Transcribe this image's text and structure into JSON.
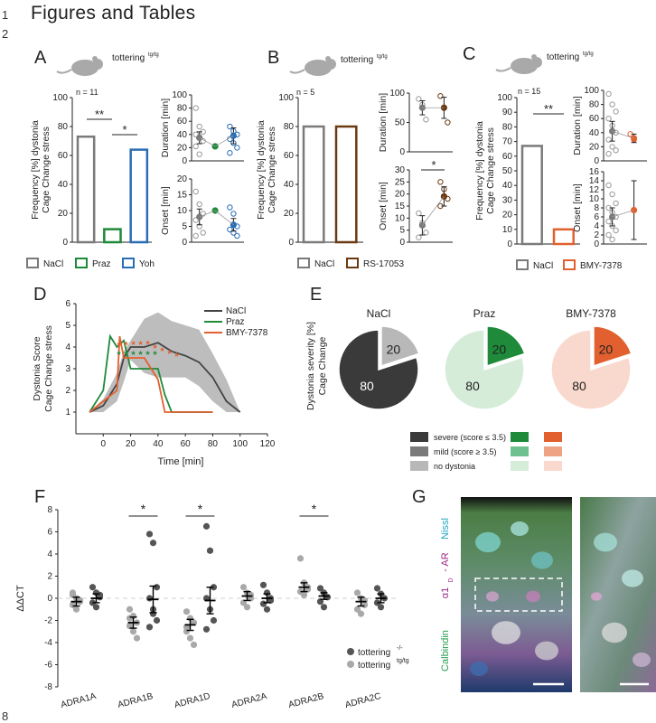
{
  "page": {
    "line_numbers": [
      "1",
      "2",
      "8"
    ],
    "heading": "Figures and Tables"
  },
  "panel_labels": {
    "A": "A",
    "B": "B",
    "C": "C",
    "D": "D",
    "E": "E",
    "F": "F",
    "G": "G"
  },
  "colors": {
    "nacl": "#7a7a7a",
    "praz": "#1e8a3a",
    "yoh": "#2a6db5",
    "rs": "#6b3a12",
    "bmy": "#e2602f",
    "gray_fill": "#bdbdbd",
    "severe_nacl": "#3a3a3a",
    "mild_nacl": "#7a7a7a",
    "no_nacl": "#b8b8b8",
    "severe_praz": "#1e8a3a",
    "mild_praz": "#6ec08e",
    "no_praz": "#d5ecd9",
    "severe_bmy": "#e2602f",
    "mild_bmy": "#efa385",
    "no_bmy": "#f9d9cd"
  },
  "chart_data": [
    {
      "id": "A-freq",
      "type": "bar",
      "title": "tottering",
      "title_sup": "tg/tg",
      "n": "n = 11",
      "ylabel": [
        "Frequency [%] dystonia",
        "Cage Change stress"
      ],
      "ylim": [
        0,
        100
      ],
      "yticks": [
        "0",
        "20",
        "40",
        "60",
        "80",
        "100"
      ],
      "categories": [
        "NaCl",
        "Praz",
        "Yoh"
      ],
      "values": [
        73,
        9,
        64
      ],
      "significance": [
        "**",
        "*"
      ],
      "legend": [
        "NaCl",
        "Praz",
        "Yoh"
      ]
    },
    {
      "id": "A-duration",
      "type": "scatter",
      "ylabel": "Duration [min]",
      "ylim": [
        0,
        100
      ],
      "yticks": [
        "0",
        "20",
        "40",
        "60",
        "80",
        "100"
      ],
      "groups": [
        {
          "name": "NaCl",
          "mean": 35,
          "err": 9
        },
        {
          "name": "Praz",
          "mean": 22
        },
        {
          "name": "Yoh",
          "mean": 38,
          "err": 12
        }
      ],
      "points": {
        "NaCl": [
          80,
          52,
          44,
          40,
          36,
          30,
          22,
          10
        ],
        "Yoh": [
          52,
          45,
          40,
          33,
          27,
          20,
          12
        ]
      }
    },
    {
      "id": "A-onset",
      "type": "scatter",
      "ylabel": "Onset [min]",
      "ylim": [
        0,
        20
      ],
      "yticks": [
        "0",
        "5",
        "10",
        "15",
        "20"
      ],
      "groups": [
        {
          "name": "NaCl",
          "mean": 8,
          "err": 2.5
        },
        {
          "name": "Praz",
          "mean": 10
        },
        {
          "name": "Yoh",
          "mean": 5.5,
          "err": 2
        }
      ],
      "points": {
        "NaCl": [
          16,
          12,
          9,
          7,
          5,
          3,
          2
        ],
        "Yoh": [
          11,
          9,
          5,
          4,
          3,
          2
        ]
      }
    },
    {
      "id": "B-freq",
      "type": "bar",
      "title": "tottering",
      "title_sup": "tg/tg",
      "n": "n = 5",
      "ylabel": [
        "Frequency [%] dystonia",
        "Cage Change stress"
      ],
      "ylim": [
        0,
        100
      ],
      "yticks": [
        "0",
        "20",
        "40",
        "60",
        "80",
        "100"
      ],
      "categories": [
        "NaCl",
        "RS-17053"
      ],
      "values": [
        80,
        80
      ],
      "legend": [
        "NaCl",
        "RS-17053"
      ]
    },
    {
      "id": "B-duration",
      "type": "scatter",
      "ylabel": "Duration [min]",
      "ylim": [
        0,
        100
      ],
      "yticks": [
        "0",
        "50",
        "100"
      ],
      "groups": [
        {
          "name": "NaCl",
          "mean": 75,
          "err": 12
        },
        {
          "name": "RS-17053",
          "mean": 75,
          "err": 18
        }
      ],
      "points": {
        "NaCl": [
          90,
          80,
          55
        ],
        "RS-17053": [
          95,
          75,
          50
        ]
      }
    },
    {
      "id": "B-onset",
      "type": "scatter",
      "ylabel": "Onset [min]",
      "ylim": [
        0,
        30
      ],
      "yticks": [
        "0",
        "5",
        "10",
        "15",
        "20",
        "25",
        "30"
      ],
      "significance": [
        "*"
      ],
      "groups": [
        {
          "name": "NaCl",
          "mean": 7,
          "err": 4
        },
        {
          "name": "RS-17053",
          "mean": 19,
          "err": 4
        }
      ],
      "points": {
        "NaCl": [
          12,
          8,
          4,
          2
        ],
        "RS-17053": [
          25,
          22,
          18,
          15
        ]
      }
    },
    {
      "id": "C-freq",
      "type": "bar",
      "title": "tottering",
      "title_sup": "tg/tg",
      "n": "n = 15",
      "ylabel": [
        "Frequency [%] dystonia",
        "Cage Change stress"
      ],
      "ylim": [
        0,
        100
      ],
      "yticks": [
        "0",
        "10",
        "20",
        "30",
        "40",
        "50",
        "60",
        "70",
        "80",
        "90",
        "100"
      ],
      "categories": [
        "NaCl",
        "BMY-7378"
      ],
      "values": [
        67,
        10
      ],
      "significance": [
        "**"
      ],
      "legend": [
        "NaCl",
        "BMY-7378"
      ]
    },
    {
      "id": "C-duration",
      "type": "scatter",
      "ylabel": "Duration [min]",
      "ylim": [
        0,
        100
      ],
      "yticks": [
        "0",
        "20",
        "40",
        "60",
        "80",
        "100"
      ],
      "groups": [
        {
          "name": "NaCl",
          "mean": 42,
          "err": 14
        },
        {
          "name": "BMY-7378",
          "mean": 32,
          "err": 6
        }
      ],
      "points": {
        "NaCl": [
          95,
          80,
          70,
          60,
          50,
          40,
          30,
          20,
          15,
          10
        ],
        "BMY-7378": [
          38,
          30
        ]
      }
    },
    {
      "id": "C-onset",
      "type": "scatter",
      "ylabel": "Onset [min]",
      "ylim": [
        0,
        16
      ],
      "yticks": [
        "0",
        "2",
        "4",
        "6",
        "8",
        "10",
        "12",
        "14",
        "16"
      ],
      "groups": [
        {
          "name": "NaCl",
          "mean": 6,
          "err": 2
        },
        {
          "name": "BMY-7378",
          "mean": 7.5,
          "err": 6.5
        }
      ],
      "points": {
        "NaCl": [
          13,
          11,
          9,
          8,
          7,
          6,
          5,
          4,
          3,
          2,
          1
        ],
        "BMY-7378": []
      }
    },
    {
      "id": "D",
      "type": "line",
      "ylabel": [
        "Dystonia Score",
        "Cage Change stress"
      ],
      "xlabel": "Time [min]",
      "xlim": [
        -20,
        120
      ],
      "ylim": [
        0,
        6
      ],
      "xticks": [
        "0",
        "20",
        "40",
        "60",
        "80",
        "100",
        "120"
      ],
      "yticks": [
        "1",
        "2",
        "3",
        "4",
        "5",
        "6"
      ],
      "legend": [
        "NaCl",
        "Praz",
        "BMY-7378"
      ],
      "band": {
        "x": [
          -10,
          0,
          10,
          15,
          20,
          30,
          40,
          50,
          60,
          70,
          80,
          90,
          100
        ],
        "upper": [
          1,
          1.6,
          2.8,
          3.8,
          4.3,
          5.3,
          5.6,
          5.2,
          5,
          4.8,
          3.7,
          2.5,
          1
        ],
        "lower": [
          1,
          1,
          1.5,
          2.4,
          3.4,
          2.8,
          2.6,
          2.6,
          2.6,
          2.2,
          1.5,
          1,
          1
        ]
      },
      "series": [
        {
          "name": "NaCl",
          "x": [
            -10,
            0,
            10,
            15,
            20,
            30,
            40,
            50,
            60,
            70,
            80,
            90,
            100
          ],
          "y": [
            1,
            1.3,
            2.3,
            3.5,
            4.0,
            4.0,
            4.2,
            3.8,
            3.6,
            3.3,
            2.6,
            1.5,
            1
          ]
        },
        {
          "name": "Praz",
          "x": [
            -10,
            0,
            5,
            10,
            15,
            20,
            30,
            40,
            45,
            50,
            55,
            60,
            80
          ],
          "y": [
            1,
            2,
            4.5,
            4,
            4.3,
            3,
            3,
            3,
            1.8,
            1,
            1,
            1,
            1
          ]
        },
        {
          "name": "BMY-7378",
          "x": [
            -10,
            0,
            10,
            12,
            15,
            20,
            30,
            35,
            40,
            45,
            50,
            55,
            60,
            80
          ],
          "y": [
            1,
            1.5,
            2,
            4.5,
            3.5,
            3.5,
            3.5,
            3,
            2.5,
            1,
            1,
            1,
            1,
            1
          ]
        }
      ],
      "stars_orange": [
        "*",
        "*",
        "*",
        "*",
        "*",
        "*",
        "*",
        "*",
        "*"
      ],
      "stars_green": [
        "*",
        "*",
        "*",
        "*",
        "*",
        "*"
      ]
    },
    {
      "id": "E",
      "type": "pie",
      "ylabel": [
        "Dystonia severity [%]",
        "Cage Change"
      ],
      "pies": [
        {
          "name": "NaCl",
          "slices": [
            {
              "label": "80",
              "value": 80,
              "kind": "severe"
            },
            {
              "label": "20",
              "value": 20,
              "kind": "no"
            }
          ]
        },
        {
          "name": "Praz",
          "slices": [
            {
              "label": "20",
              "value": 20,
              "kind": "severe"
            },
            {
              "label": "80",
              "value": 80,
              "kind": "no"
            }
          ]
        },
        {
          "name": "BMY-7378",
          "slices": [
            {
              "label": "20",
              "value": 20,
              "kind": "severe"
            },
            {
              "label": "80",
              "value": 80,
              "kind": "no"
            }
          ]
        }
      ],
      "legend": [
        "severe (score ≤ 3.5)",
        "mild (score ≥ 3.5)",
        "no dystonia"
      ]
    },
    {
      "id": "F",
      "type": "scatter",
      "ylabel": "ΔΔCT",
      "ylim": [
        -8,
        8
      ],
      "yticks": [
        "-8",
        "-6",
        "-4",
        "-2",
        "0",
        "2",
        "4",
        "6",
        "8"
      ],
      "categories": [
        "ADRA1A",
        "ADRA1B",
        "ADRA1D",
        "ADRA2A",
        "ADRA2B",
        "ADRA2C"
      ],
      "significance": [
        "*",
        "*",
        "*"
      ],
      "legend": [
        "tottering",
        "tottering"
      ],
      "legend_sup": [
        "-/-",
        "tg/tg"
      ],
      "series": [
        {
          "name": "tg/tg",
          "means": [
            -0.3,
            -2.2,
            -2.4,
            0.2,
            1.0,
            -0.3
          ],
          "errs": [
            0.4,
            0.5,
            0.5,
            0.4,
            0.4,
            0.4
          ],
          "points": [
            [
              0.5,
              0,
              -0.3,
              -0.6,
              -1,
              -0.2,
              0.3
            ],
            [
              -1,
              -1.6,
              -2.2,
              -2.5,
              -3,
              -3.6,
              -1.8
            ],
            [
              -1.2,
              -1.8,
              -2.2,
              -3,
              -3.6,
              -4.2,
              -2.6
            ],
            [
              1,
              0.5,
              0,
              -0.4,
              -0.8,
              0.3
            ],
            [
              3.6,
              1.4,
              1,
              0.6,
              0.3,
              0.8
            ],
            [
              0.5,
              0,
              -0.6,
              -1,
              -1.4,
              -0.2
            ]
          ]
        },
        {
          "name": "-/-",
          "means": [
            0,
            -0.1,
            -0.2,
            0,
            0.2,
            0
          ],
          "errs": [
            0.4,
            1.2,
            1.2,
            0.4,
            0.3,
            0.4
          ],
          "points": [
            [
              1,
              0.5,
              0.1,
              -0.4,
              -0.8,
              0.3
            ],
            [
              5.8,
              5,
              1,
              0,
              -1,
              -2,
              -2.6,
              -1.4
            ],
            [
              6.5,
              4.3,
              1,
              0,
              -1,
              -2,
              -2.8
            ],
            [
              1.2,
              0.5,
              0,
              -0.5,
              -1,
              -0.2
            ],
            [
              0.9,
              0.5,
              0.1,
              -0.3,
              -0.8
            ],
            [
              0.9,
              0.4,
              0,
              -0.4,
              -0.8
            ]
          ]
        }
      ]
    },
    {
      "id": "G",
      "type": "image",
      "channel_labels": [
        "Calbindin",
        "α1",
        "D",
        "- AR",
        "Nissl"
      ]
    }
  ]
}
